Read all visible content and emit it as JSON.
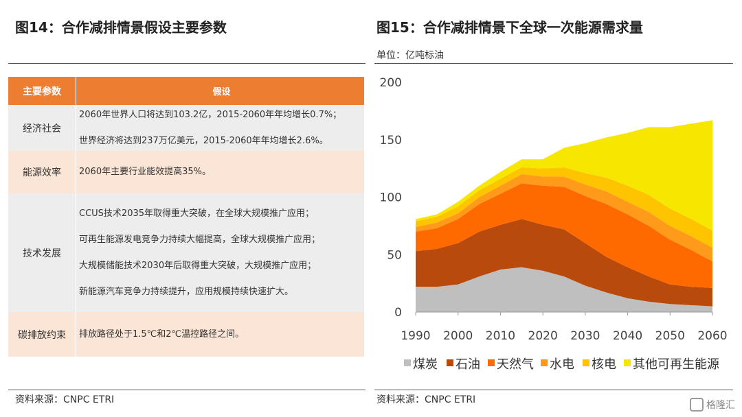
{
  "left": {
    "title": "图14：合作减排情景假设主要参数",
    "table": {
      "header": [
        "主要参数",
        "假设"
      ],
      "rows": [
        {
          "param": "经济社会",
          "lines": [
            "2060年世界人口将达到103.2亿，2015-2060年年均增长0.7%；",
            "世界经济将达到237万亿美元，2015-2060年年均增长2.6%。"
          ]
        },
        {
          "param": "能源效率",
          "lines": [
            "2060年主要行业能效提高35%。"
          ]
        },
        {
          "param": "技术发展",
          "lines": [
            "CCUS技术2035年取得重大突破，在全球大规模推广应用；",
            "可再生能源发电竞争力持续大幅提高，全球大规模推广应用；",
            "大规模储能技术2030年后取得重大突破，大规模推广应用；",
            "新能源汽车竞争力持续提升，应用规模持续快速扩大。"
          ]
        },
        {
          "param": "碳排放约束",
          "lines": [
            "排放路径处于1.5℃和2℃温控路径之间。"
          ]
        }
      ]
    },
    "source": "资料来源：CNPC ETRI"
  },
  "chart_data": {
    "type": "stacked-area",
    "title": "图15：合作减排情景下全球一次能源需求量",
    "subtitle": "单位：亿吨标油",
    "x": [
      1990,
      1995,
      2000,
      2005,
      2010,
      2015,
      2020,
      2025,
      2030,
      2035,
      2040,
      2045,
      2050,
      2055,
      2060
    ],
    "series": [
      {
        "name": "煤炭",
        "color": "#bfbfbf",
        "values": [
          22,
          22,
          24,
          31,
          37,
          39,
          36,
          31,
          23,
          17,
          12,
          9,
          7,
          6,
          5
        ]
      },
      {
        "name": "石油",
        "color": "#b84a0c",
        "values": [
          31,
          33,
          36,
          39,
          39,
          42,
          40,
          41,
          37,
          31,
          27,
          22,
          17,
          16,
          16
        ]
      },
      {
        "name": "天然气",
        "color": "#ff6a00",
        "values": [
          17,
          18,
          21,
          24,
          27,
          31,
          34,
          37,
          41,
          46,
          46,
          44,
          39,
          32,
          23
        ]
      },
      {
        "name": "水电",
        "color": "#ff9a1a",
        "values": [
          4,
          5,
          5,
          6,
          7,
          8,
          8,
          9,
          10,
          11,
          11,
          12,
          12,
          12,
          12
        ]
      },
      {
        "name": "核电",
        "color": "#ffc400",
        "values": [
          5,
          5,
          6,
          6,
          6,
          6,
          7,
          8,
          10,
          12,
          14,
          15,
          15,
          15,
          15
        ]
      },
      {
        "name": "其他可再生能源",
        "color": "#f7e600",
        "values": [
          2,
          2,
          4,
          4,
          6,
          7,
          8,
          17,
          26,
          35,
          46,
          59,
          71,
          83,
          96
        ]
      }
    ],
    "xlim": [
      1990,
      2060
    ],
    "xticks": [
      1990,
      2000,
      2010,
      2020,
      2030,
      2040,
      2050,
      2060
    ],
    "ylim": [
      0,
      200
    ],
    "yticks": [
      0,
      50,
      100,
      150,
      200
    ],
    "source": "资料来源：CNPC ETRI"
  },
  "watermark": "格隆汇"
}
